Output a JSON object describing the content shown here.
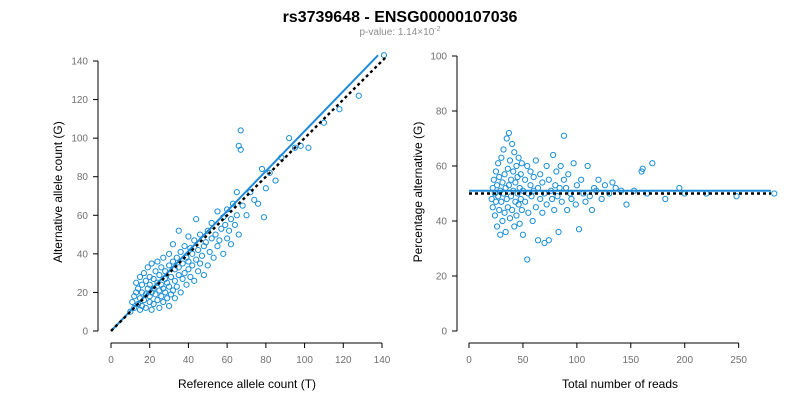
{
  "title": "rs3739648 - ENSG00000107036",
  "pvalue": {
    "label": "p-value: 1.14×10",
    "exponent": "-2"
  },
  "colors": {
    "points": "#1b8fd6",
    "fit_line": "#1f8ad8",
    "reference_line": "#000000"
  },
  "chart_data": [
    {
      "type": "scatter",
      "title": "",
      "xlabel": "Reference allele count (T)",
      "ylabel": "Alternative allele count (G)",
      "xlim": [
        0,
        140
      ],
      "ylim": [
        0,
        140
      ],
      "xticks": [
        0,
        20,
        40,
        60,
        80,
        100,
        120,
        140
      ],
      "yticks": [
        0,
        20,
        40,
        60,
        80,
        100,
        120,
        140
      ],
      "grid": false,
      "points": [
        [
          10,
          10
        ],
        [
          11,
          15
        ],
        [
          12,
          12
        ],
        [
          12,
          18
        ],
        [
          13,
          20
        ],
        [
          13,
          25
        ],
        [
          14,
          14
        ],
        [
          14,
          22
        ],
        [
          15,
          11
        ],
        [
          15,
          17
        ],
        [
          15,
          28
        ],
        [
          16,
          13
        ],
        [
          16,
          20
        ],
        [
          16,
          24
        ],
        [
          17,
          16
        ],
        [
          17,
          30
        ],
        [
          18,
          12
        ],
        [
          18,
          19
        ],
        [
          18,
          26
        ],
        [
          19,
          22
        ],
        [
          19,
          33
        ],
        [
          20,
          15
        ],
        [
          20,
          18
        ],
        [
          20,
          24
        ],
        [
          20,
          28
        ],
        [
          21,
          11
        ],
        [
          21,
          20
        ],
        [
          21,
          35
        ],
        [
          22,
          14
        ],
        [
          22,
          22
        ],
        [
          22,
          27
        ],
        [
          23,
          19
        ],
        [
          23,
          31
        ],
        [
          24,
          16
        ],
        [
          24,
          25
        ],
        [
          24,
          36
        ],
        [
          25,
          12
        ],
        [
          25,
          21
        ],
        [
          25,
          29
        ],
        [
          26,
          18
        ],
        [
          26,
          24
        ],
        [
          26,
          33
        ],
        [
          27,
          15
        ],
        [
          27,
          22
        ],
        [
          27,
          38
        ],
        [
          28,
          20
        ],
        [
          28,
          27
        ],
        [
          28,
          31
        ],
        [
          29,
          17
        ],
        [
          29,
          25
        ],
        [
          30,
          13
        ],
        [
          30,
          23
        ],
        [
          30,
          34
        ],
        [
          30,
          40
        ],
        [
          31,
          19
        ],
        [
          31,
          28
        ],
        [
          32,
          21
        ],
        [
          32,
          36
        ],
        [
          32,
          45
        ],
        [
          33,
          17
        ],
        [
          33,
          26
        ],
        [
          33,
          32
        ],
        [
          34,
          23
        ],
        [
          34,
          38
        ],
        [
          35,
          29
        ],
        [
          35,
          33
        ],
        [
          35,
          52
        ],
        [
          36,
          20
        ],
        [
          36,
          41
        ],
        [
          37,
          27
        ],
        [
          37,
          35
        ],
        [
          38,
          30
        ],
        [
          38,
          44
        ],
        [
          39,
          24
        ],
        [
          39,
          38
        ],
        [
          40,
          32
        ],
        [
          40,
          36
        ],
        [
          40,
          49
        ],
        [
          41,
          28
        ],
        [
          41,
          43
        ],
        [
          42,
          34
        ],
        [
          42,
          40
        ],
        [
          43,
          26
        ],
        [
          43,
          47
        ],
        [
          44,
          37
        ],
        [
          44,
          58
        ],
        [
          45,
          31
        ],
        [
          45,
          42
        ],
        [
          46,
          35
        ],
        [
          46,
          50
        ],
        [
          47,
          39
        ],
        [
          48,
          44
        ],
        [
          48,
          29
        ],
        [
          49,
          46
        ],
        [
          50,
          34
        ],
        [
          50,
          52
        ],
        [
          51,
          41
        ],
        [
          52,
          48
        ],
        [
          52,
          56
        ],
        [
          53,
          38
        ],
        [
          54,
          50
        ],
        [
          55,
          44
        ],
        [
          55,
          62
        ],
        [
          56,
          47
        ],
        [
          57,
          53
        ],
        [
          58,
          40
        ],
        [
          58,
          59
        ],
        [
          59,
          55
        ],
        [
          60,
          48
        ],
        [
          60,
          63
        ],
        [
          61,
          52
        ],
        [
          62,
          45
        ],
        [
          62,
          58
        ],
        [
          63,
          66
        ],
        [
          64,
          55
        ],
        [
          65,
          60
        ],
        [
          65,
          72
        ],
        [
          66,
          50
        ],
        [
          66,
          96
        ],
        [
          67,
          94
        ],
        [
          67,
          104
        ],
        [
          68,
          65
        ],
        [
          70,
          60
        ],
        [
          72,
          72
        ],
        [
          74,
          68
        ],
        [
          76,
          66
        ],
        [
          78,
          84
        ],
        [
          79,
          59
        ],
        [
          80,
          74
        ],
        [
          82,
          82
        ],
        [
          85,
          78
        ],
        [
          88,
          90
        ],
        [
          92,
          100
        ],
        [
          95,
          95
        ],
        [
          98,
          96
        ],
        [
          102,
          95
        ],
        [
          110,
          108
        ],
        [
          118,
          115
        ],
        [
          128,
          122
        ],
        [
          141,
          143
        ]
      ],
      "fit_line": [
        [
          0,
          0
        ],
        [
          138,
          143
        ]
      ],
      "reference_line": [
        [
          0,
          0
        ],
        [
          142,
          142
        ]
      ]
    },
    {
      "type": "scatter",
      "title": "",
      "xlabel": "Total number of reads",
      "ylabel": "Percentage alternative (G)",
      "xlim": [
        0,
        280
      ],
      "ylim": [
        0,
        100
      ],
      "xticks": [
        0,
        50,
        100,
        150,
        200,
        250
      ],
      "yticks": [
        0,
        20,
        40,
        60,
        80,
        100
      ],
      "grid": false,
      "points": [
        [
          21,
          48
        ],
        [
          22,
          52
        ],
        [
          22,
          45
        ],
        [
          23,
          55
        ],
        [
          24,
          50
        ],
        [
          24,
          42
        ],
        [
          25,
          58
        ],
        [
          25,
          47
        ],
        [
          26,
          53
        ],
        [
          26,
          38
        ],
        [
          27,
          61
        ],
        [
          27,
          49
        ],
        [
          28,
          44
        ],
        [
          28,
          56
        ],
        [
          29,
          51
        ],
        [
          29,
          35
        ],
        [
          30,
          63
        ],
        [
          30,
          47
        ],
        [
          31,
          54
        ],
        [
          31,
          40
        ],
        [
          32,
          66
        ],
        [
          32,
          50
        ],
        [
          33,
          43
        ],
        [
          33,
          57
        ],
        [
          34,
          52
        ],
        [
          34,
          36
        ],
        [
          35,
          70
        ],
        [
          35,
          48
        ],
        [
          36,
          59
        ],
        [
          36,
          45
        ],
        [
          37,
          72
        ],
        [
          37,
          53
        ],
        [
          38,
          41
        ],
        [
          38,
          62
        ],
        [
          39,
          49
        ],
        [
          39,
          55
        ],
        [
          40,
          68
        ],
        [
          40,
          44
        ],
        [
          41,
          51
        ],
        [
          41,
          58
        ],
        [
          42,
          38
        ],
        [
          42,
          65
        ],
        [
          43,
          47
        ],
        [
          43,
          54
        ],
        [
          44,
          60
        ],
        [
          44,
          42
        ],
        [
          45,
          50
        ],
        [
          45,
          56
        ],
        [
          46,
          46
        ],
        [
          46,
          63
        ],
        [
          47,
          52
        ],
        [
          47,
          39
        ],
        [
          48,
          57
        ],
        [
          48,
          48
        ],
        [
          49,
          44
        ],
        [
          49,
          61
        ],
        [
          50,
          51
        ],
        [
          50,
          35
        ],
        [
          52,
          55
        ],
        [
          52,
          47
        ],
        [
          54,
          26
        ],
        [
          54,
          60
        ],
        [
          55,
          50
        ],
        [
          55,
          43
        ],
        [
          57,
          53
        ],
        [
          57,
          58
        ],
        [
          58,
          49
        ],
        [
          59,
          40
        ],
        [
          60,
          56
        ],
        [
          60,
          51
        ],
        [
          62,
          45
        ],
        [
          62,
          62
        ],
        [
          64,
          52
        ],
        [
          64,
          33
        ],
        [
          66,
          48
        ],
        [
          66,
          57
        ],
        [
          68,
          43
        ],
        [
          68,
          54
        ],
        [
          70,
          50
        ],
        [
          70,
          32
        ],
        [
          72,
          60
        ],
        [
          72,
          46
        ],
        [
          74,
          55
        ],
        [
          74,
          33
        ],
        [
          76,
          51
        ],
        [
          77,
          48
        ],
        [
          78,
          64
        ],
        [
          79,
          44
        ],
        [
          80,
          53
        ],
        [
          81,
          58
        ],
        [
          82,
          49
        ],
        [
          83,
          36
        ],
        [
          84,
          52
        ],
        [
          85,
          60
        ],
        [
          86,
          47
        ],
        [
          88,
          71
        ],
        [
          88,
          55
        ],
        [
          90,
          52
        ],
        [
          91,
          44
        ],
        [
          92,
          57
        ],
        [
          94,
          50
        ],
        [
          95,
          48
        ],
        [
          97,
          61
        ],
        [
          99,
          46
        ],
        [
          100,
          53
        ],
        [
          102,
          37
        ],
        [
          104,
          55
        ],
        [
          106,
          50
        ],
        [
          108,
          47
        ],
        [
          110,
          60
        ],
        [
          112,
          49
        ],
        [
          114,
          44
        ],
        [
          116,
          52
        ],
        [
          118,
          51
        ],
        [
          120,
          55
        ],
        [
          123,
          48
        ],
        [
          126,
          53
        ],
        [
          130,
          50
        ],
        [
          133,
          54
        ],
        [
          136,
          52
        ],
        [
          141,
          51
        ],
        [
          146,
          46
        ],
        [
          153,
          51
        ],
        [
          160,
          58
        ],
        [
          161,
          59
        ],
        [
          165,
          50
        ],
        [
          170,
          61
        ],
        [
          182,
          48
        ],
        [
          195,
          52
        ],
        [
          200,
          50
        ],
        [
          220,
          50
        ],
        [
          248,
          49
        ],
        [
          283,
          50
        ]
      ],
      "fit_line": [
        [
          0,
          51
        ],
        [
          280,
          51
        ]
      ],
      "reference_line": [
        [
          0,
          50
        ],
        [
          280,
          50
        ]
      ]
    }
  ]
}
